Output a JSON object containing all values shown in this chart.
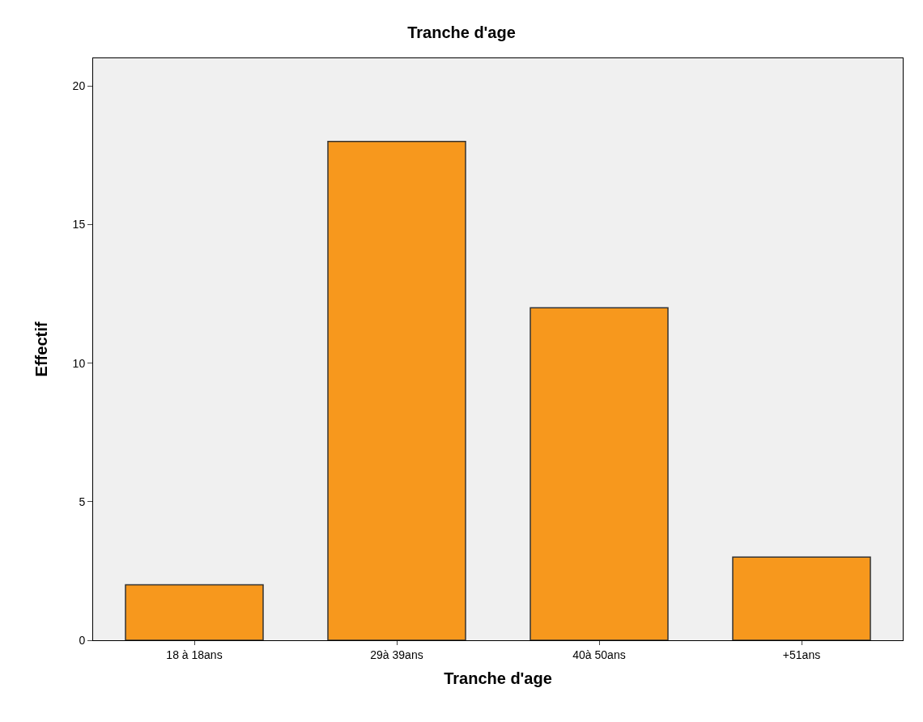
{
  "chart_data": {
    "type": "bar",
    "title": "Tranche d'age",
    "xlabel": "Tranche d'age",
    "ylabel": "Effectif",
    "categories": [
      "18 à 18ans",
      "29à 39ans",
      "40à 50ans",
      "+51ans"
    ],
    "values": [
      2,
      18,
      12,
      3
    ],
    "color": "#f7981d",
    "ylim": [
      0,
      21
    ],
    "yticks": [
      0,
      5,
      10,
      15,
      20
    ],
    "grid": false,
    "legend": false
  }
}
